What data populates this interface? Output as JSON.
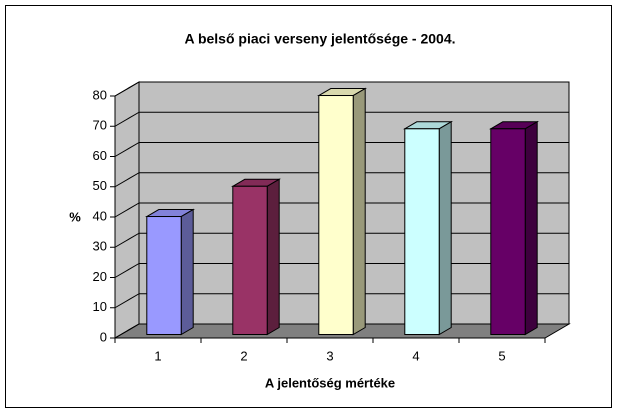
{
  "chart_data": {
    "type": "bar3d",
    "title": "A belső piaci verseny jelentősége - 2004.",
    "x_label": "A jelentőség mértéke",
    "y_label": "%",
    "categories": [
      "1",
      "2",
      "3",
      "4",
      "5"
    ],
    "values": [
      39,
      49,
      79,
      68,
      68
    ],
    "colors": [
      "#9999ff",
      "#993366",
      "#ffffcc",
      "#ccffff",
      "#660066"
    ],
    "ylim": [
      0,
      80
    ],
    "yticks": [
      0,
      10,
      20,
      30,
      40,
      50,
      60,
      70,
      80
    ],
    "grid": true
  }
}
